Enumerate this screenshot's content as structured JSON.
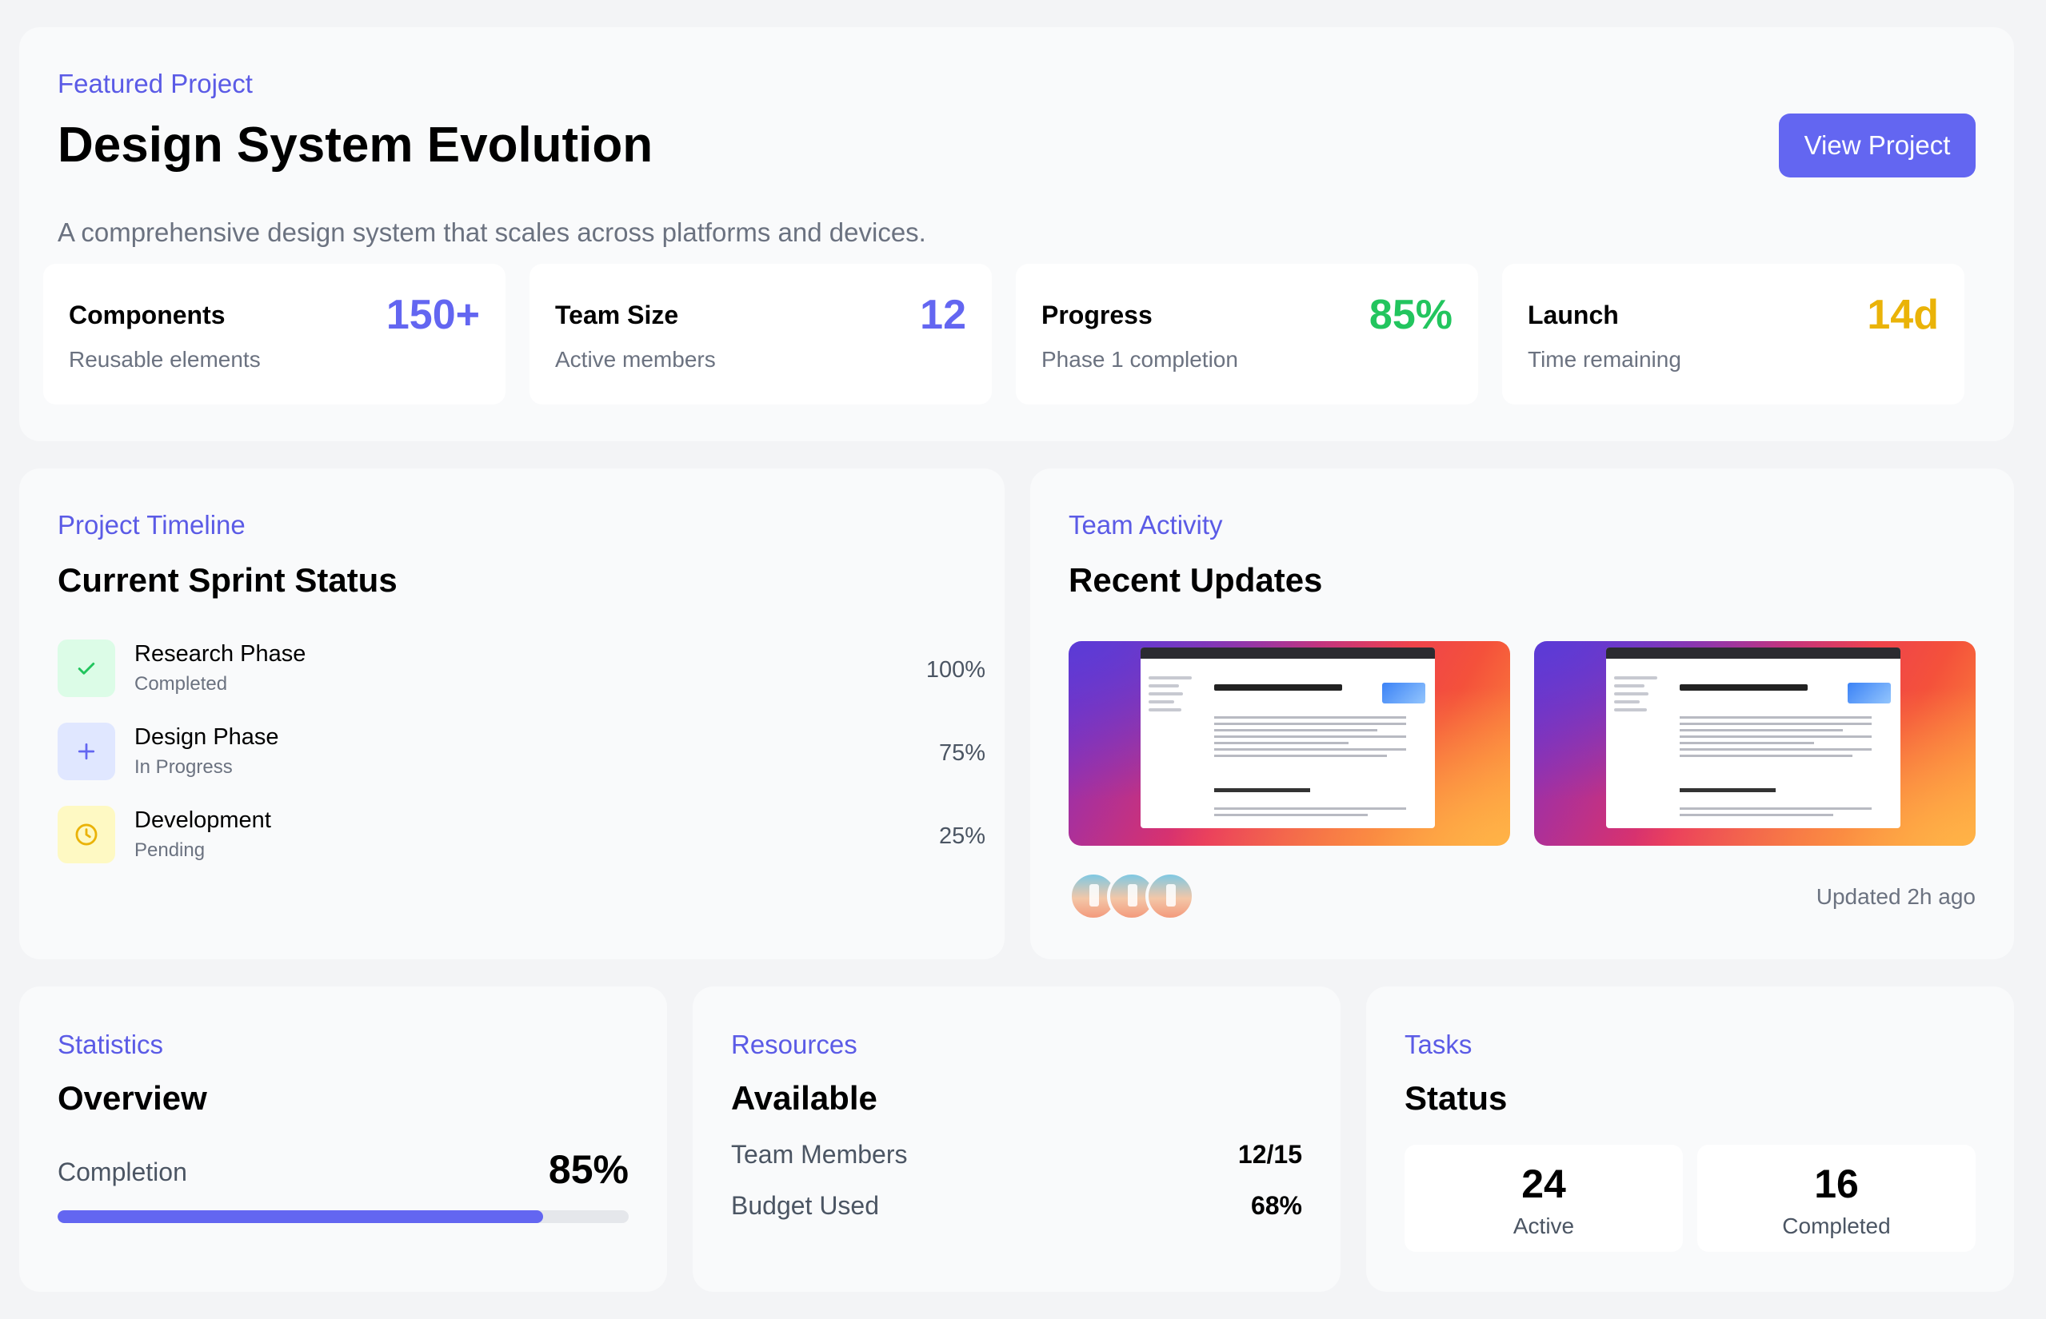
{
  "featured": {
    "eyebrow": "Featured Project",
    "title": "Design System Evolution",
    "description": "A comprehensive design system that scales across platforms and devices.",
    "button_label": "View Project",
    "stats": [
      {
        "label": "Components",
        "sub": "Reusable elements",
        "value": "150+",
        "color": "#6366f1"
      },
      {
        "label": "Team Size",
        "sub": "Active members",
        "value": "12",
        "color": "#6366f1"
      },
      {
        "label": "Progress",
        "sub": "Phase 1 completion",
        "value": "85%",
        "color": "#22c55e"
      },
      {
        "label": "Launch",
        "sub": "Time remaining",
        "value": "14d",
        "color": "#eab308"
      }
    ]
  },
  "timeline": {
    "eyebrow": "Project Timeline",
    "title": "Current Sprint Status",
    "items": [
      {
        "name": "Research Phase",
        "status": "Completed",
        "percent": "100%",
        "icon": "check-icon"
      },
      {
        "name": "Design Phase",
        "status": "In Progress",
        "percent": "75%",
        "icon": "plus-icon"
      },
      {
        "name": "Development",
        "status": "Pending",
        "percent": "25%",
        "icon": "clock-icon"
      }
    ]
  },
  "activity": {
    "eyebrow": "Team Activity",
    "title": "Recent Updates",
    "updated": "Updated 2h ago"
  },
  "statistics": {
    "eyebrow": "Statistics",
    "title": "Overview",
    "completion_label": "Completion",
    "completion_value": "85%",
    "completion_fraction": 0.85
  },
  "resources": {
    "eyebrow": "Resources",
    "title": "Available",
    "rows": [
      {
        "label": "Team Members",
        "value": "12/15"
      },
      {
        "label": "Budget Used",
        "value": "68%"
      }
    ]
  },
  "tasks": {
    "eyebrow": "Tasks",
    "title": "Status",
    "boxes": [
      {
        "number": "24",
        "label": "Active"
      },
      {
        "number": "16",
        "label": "Completed"
      }
    ]
  },
  "colors": {
    "accent": "#6366f1",
    "success": "#22c55e",
    "warning": "#eab308"
  }
}
